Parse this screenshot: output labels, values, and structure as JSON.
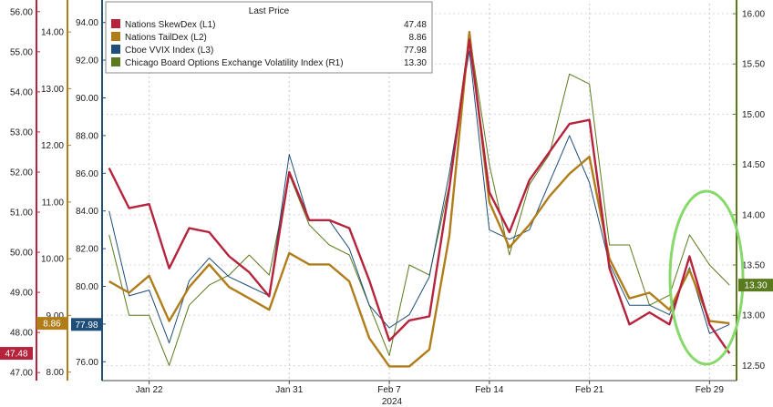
{
  "chart_data": {
    "type": "line",
    "legend": {
      "header": "Last Price",
      "placement": "top-left",
      "entries": [
        {
          "name": "Nations SkewDex  (L1)",
          "value": "47.48",
          "color": "#b5243c"
        },
        {
          "name": "Nations TailDex  (L2)",
          "value": "8.86",
          "color": "#b07d1a"
        },
        {
          "name": "Cboe VVIX Index  (L3)",
          "value": "77.98",
          "color": "#1f4e79"
        },
        {
          "name": "Chicago Board Options Exchange Volatility Index  (R1)",
          "value": "13.30",
          "color": "#5a7a1e"
        }
      ]
    },
    "x_axis": {
      "ticks": [
        {
          "label": "Jan 22",
          "index": 2
        },
        {
          "label": "Jan 31",
          "index": 9
        },
        {
          "label": "Feb 7",
          "index": 14
        },
        {
          "label": "Feb 14",
          "index": 19
        },
        {
          "label": "Feb 21",
          "index": 24
        },
        {
          "label": "Feb 29",
          "index": 30
        }
      ],
      "year_label": "2024"
    },
    "axes": {
      "L1": {
        "ylim": [
          46.8,
          56.2
        ],
        "ticks": [
          "47.00",
          "48.00",
          "49.00",
          "50.00",
          "51.00",
          "52.00",
          "53.00",
          "54.00",
          "55.00",
          "56.00"
        ]
      },
      "L2": {
        "ylim": [
          7.85,
          14.5
        ],
        "ticks": [
          "8.00",
          "9.00",
          "10.00",
          "11.00",
          "12.00",
          "13.00",
          "14.00"
        ]
      },
      "L3": {
        "ylim": [
          75.0,
          95.0
        ],
        "ticks": [
          "76.00",
          "78.00",
          "80.00",
          "82.00",
          "84.00",
          "86.00",
          "88.00",
          "90.00",
          "92.00",
          "94.00"
        ]
      },
      "R1": {
        "ylim": [
          12.35,
          16.1
        ],
        "ticks": [
          "12.50",
          "13.00",
          "13.50",
          "14.00",
          "14.50",
          "15.00",
          "15.50",
          "16.00"
        ]
      }
    },
    "last_value_tags": [
      {
        "axis": "L1",
        "label": "47.48",
        "value": 47.48,
        "color": "#b5243c"
      },
      {
        "axis": "L2",
        "label": "8.86",
        "value": 8.86,
        "color": "#b07d1a"
      },
      {
        "axis": "L3",
        "label": "77.98",
        "value": 77.98,
        "color": "#1f4e79"
      },
      {
        "axis": "R1",
        "label": "13.30",
        "value": 13.3,
        "color": "#5a7a1e"
      }
    ],
    "series": [
      {
        "name": "Nations SkewDex",
        "axis": "L1",
        "color": "#b5243c",
        "values": [
          52.1,
          51.1,
          51.2,
          49.6,
          50.6,
          50.5,
          49.9,
          49.5,
          48.9,
          52.0,
          50.8,
          50.8,
          50.6,
          49.3,
          47.8,
          48.3,
          48.4,
          51.6,
          55.3,
          51.5,
          50.5,
          51.8,
          52.5,
          53.2,
          53.3,
          49.6,
          48.2,
          48.5,
          48.2,
          49.9,
          48.2,
          47.48
        ]
      },
      {
        "name": "Nations TailDex",
        "axis": "L2",
        "color": "#b07d1a",
        "values": [
          9.6,
          9.4,
          9.7,
          8.9,
          9.5,
          9.9,
          9.5,
          9.3,
          9.1,
          10.1,
          9.9,
          9.9,
          9.6,
          8.6,
          8.1,
          8.1,
          8.4,
          10.4,
          14.0,
          11.0,
          10.2,
          10.6,
          11.1,
          11.5,
          11.8,
          10.0,
          9.3,
          9.4,
          9.1,
          9.8,
          8.9,
          8.86
        ]
      },
      {
        "name": "Cboe VVIX Index",
        "axis": "L3",
        "color": "#1f4e79",
        "values": [
          84.0,
          79.5,
          79.8,
          77.0,
          80.3,
          81.5,
          80.5,
          80.0,
          79.5,
          87.0,
          83.5,
          83.5,
          82.0,
          79.0,
          77.8,
          78.5,
          80.5,
          86.0,
          92.5,
          83.0,
          82.5,
          83.0,
          85.5,
          88.0,
          85.5,
          81.2,
          79.0,
          79.0,
          78.5,
          81.0,
          77.5,
          77.98
        ]
      },
      {
        "name": "Chicago Board Options Exchange Volatility Index",
        "axis": "R1",
        "color": "#5a7a1e",
        "values": [
          13.8,
          13.0,
          13.0,
          12.5,
          13.1,
          13.3,
          13.4,
          13.6,
          13.4,
          14.4,
          13.9,
          13.7,
          13.6,
          13.1,
          12.6,
          13.5,
          13.4,
          14.3,
          15.8,
          14.5,
          13.6,
          14.3,
          14.6,
          15.4,
          15.3,
          13.7,
          13.7,
          13.1,
          13.2,
          13.8,
          13.5,
          13.3
        ]
      }
    ]
  }
}
